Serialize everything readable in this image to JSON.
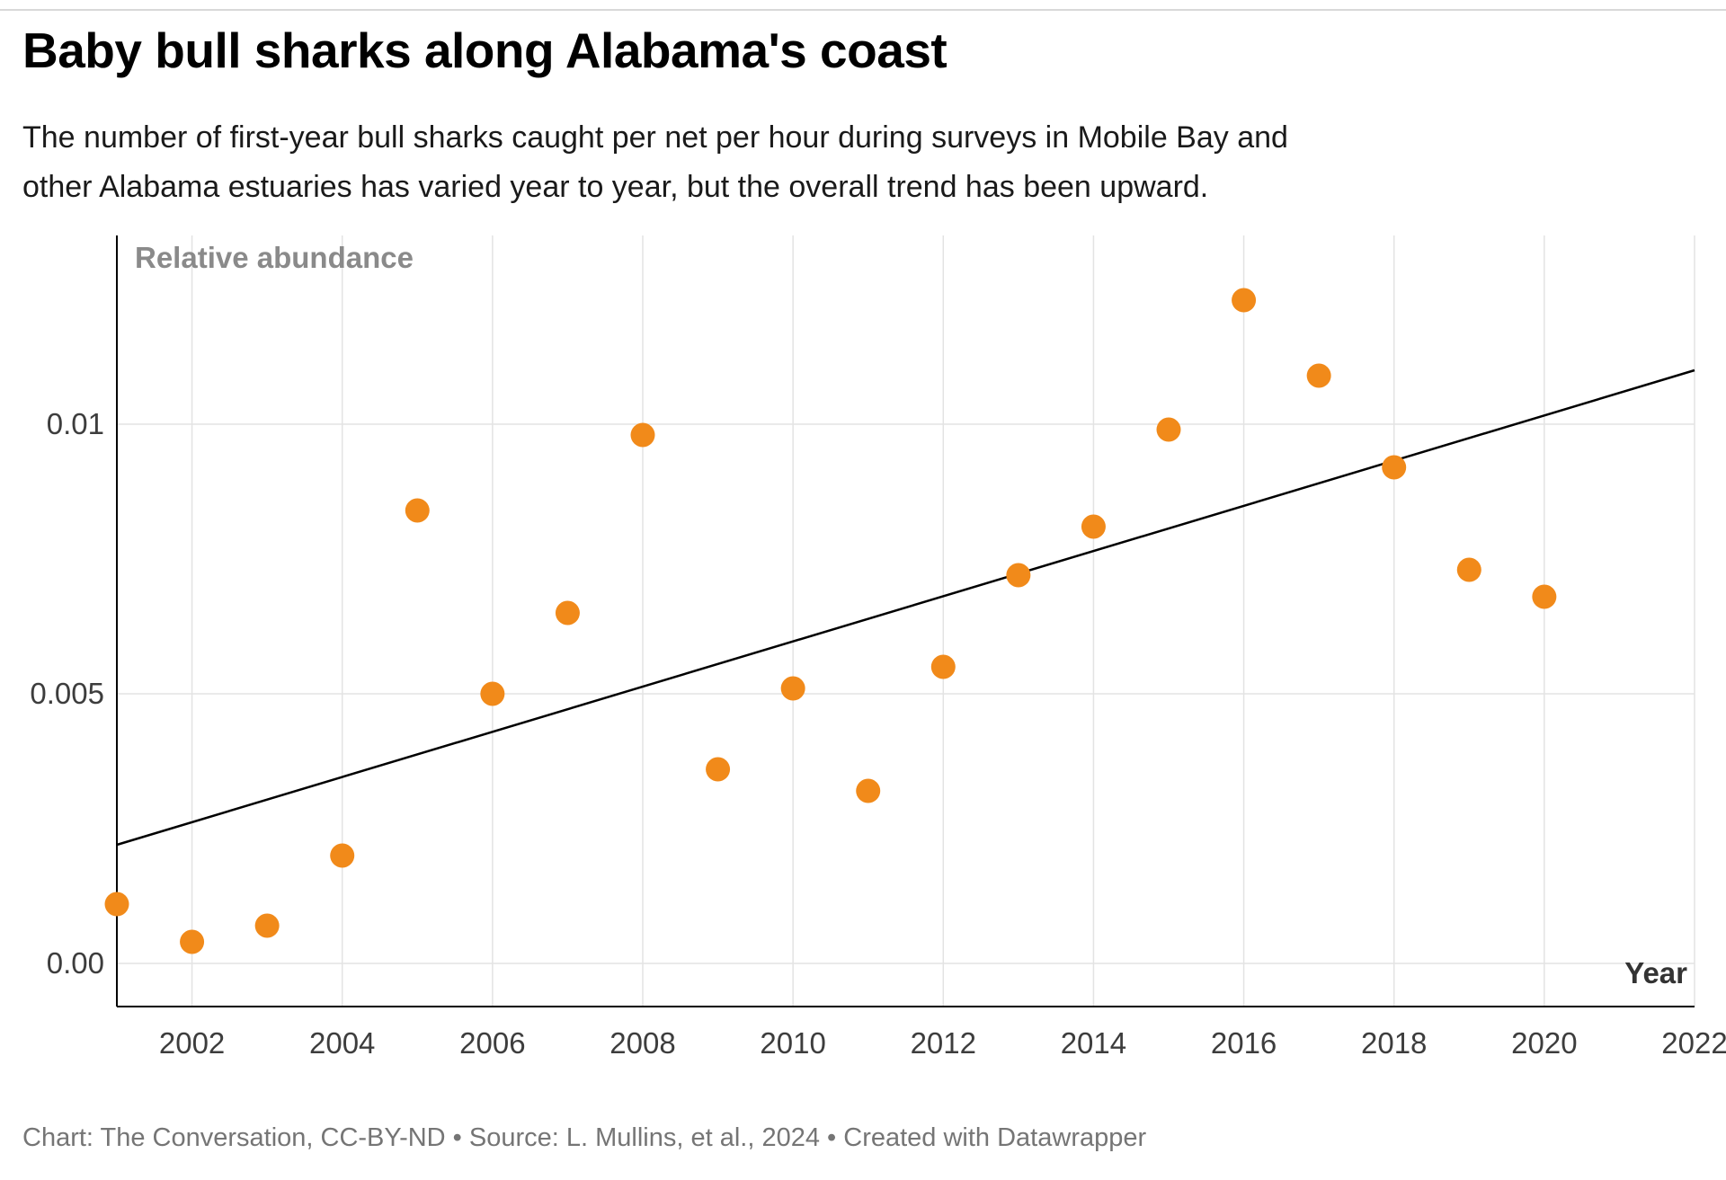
{
  "chart_data": {
    "type": "scatter",
    "title": "Baby bull sharks along Alabama's coast",
    "subtitle_lines": [
      "The number of first-year bull sharks caught per net per hour during surveys in Mobile Bay and",
      "other Alabama estuaries has varied year to year, but the overall trend has been upward."
    ],
    "xlabel": "Year",
    "ylabel": "Relative abundance",
    "x": [
      2001,
      2002,
      2003,
      2004,
      2005,
      2006,
      2007,
      2008,
      2009,
      2010,
      2011,
      2012,
      2013,
      2014,
      2015,
      2016,
      2017,
      2018,
      2019,
      2020
    ],
    "y": [
      0.0011,
      0.0004,
      0.0007,
      0.002,
      0.0084,
      0.005,
      0.0065,
      0.0098,
      0.0036,
      0.0051,
      0.0032,
      0.0055,
      0.0072,
      0.0081,
      0.0099,
      0.0123,
      0.0109,
      0.0092,
      0.0073,
      0.0068
    ],
    "trend_line": {
      "x": [
        2001,
        2022
      ],
      "y": [
        0.0022,
        0.011
      ]
    },
    "xlim": [
      2001,
      2022
    ],
    "ylim": [
      -0.0008,
      0.0135
    ],
    "x_ticks": [
      {
        "value": 2002,
        "label": "2002"
      },
      {
        "value": 2004,
        "label": "2004"
      },
      {
        "value": 2006,
        "label": "2006"
      },
      {
        "value": 2008,
        "label": "2008"
      },
      {
        "value": 2010,
        "label": "2010"
      },
      {
        "value": 2012,
        "label": "2012"
      },
      {
        "value": 2014,
        "label": "2014"
      },
      {
        "value": 2016,
        "label": "2016"
      },
      {
        "value": 2018,
        "label": "2018"
      },
      {
        "value": 2020,
        "label": "2020"
      },
      {
        "value": 2022,
        "label": "2022"
      }
    ],
    "y_ticks": [
      {
        "value": 0,
        "label": "0.00"
      },
      {
        "value": 0.005,
        "label": "0.005"
      },
      {
        "value": 0.01,
        "label": "0.01"
      }
    ],
    "grid": true,
    "legend": "none",
    "point_color": "#F18A1A",
    "trend_color": "#000000",
    "axis_color": "#000000",
    "grid_color": "#e3e3e3"
  },
  "footer": {
    "credit": "Chart: The Conversation, CC-BY-ND • Source: L. Mullins, et al., 2024 • Created with Datawrapper"
  }
}
